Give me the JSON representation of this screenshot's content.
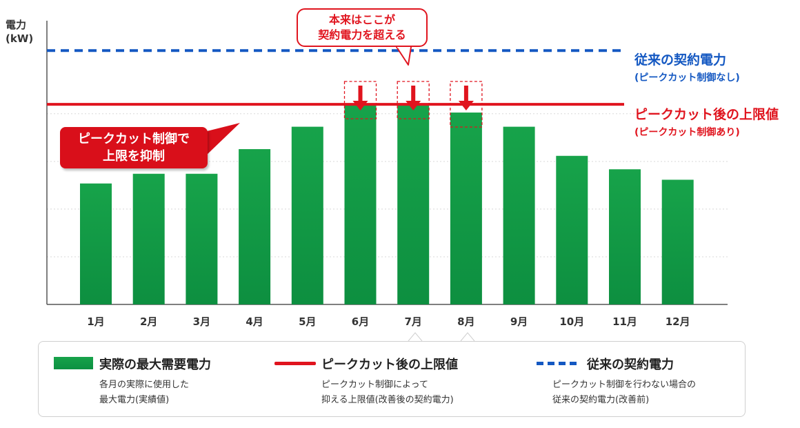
{
  "chart_data": {
    "type": "bar",
    "ylabel": "電力\n(kW)",
    "categories": [
      "1月",
      "2月",
      "3月",
      "4月",
      "5月",
      "6月",
      "7月",
      "8月",
      "9月",
      "10月",
      "11月",
      "12月"
    ],
    "series": [
      {
        "name": "実際の最大需要電力",
        "values": [
          162,
          175,
          175,
          208,
          238,
          268,
          268,
          257,
          238,
          199,
          181,
          167
        ]
      }
    ],
    "ylim": [
      0,
      380
    ],
    "grid": true,
    "reference_lines": [
      {
        "name": "ピークカット後の上限値",
        "value": 268,
        "style": "solid",
        "color": "#e0141e"
      },
      {
        "name": "従来の契約電力",
        "value": 340,
        "style": "dashed",
        "color": "#1458c2"
      }
    ],
    "reduced_months": [
      "6月",
      "7月",
      "8月"
    ]
  },
  "y_axis": {
    "line1": "電力",
    "line2": "(kW)"
  },
  "annotations": {
    "top_callout": {
      "line1": "本来はここが",
      "line2": "契約電力を超える"
    },
    "left_callout": {
      "line1": "ピークカット制御で",
      "line2": "上限を抑制"
    },
    "blue_label": {
      "title": "従来の契約電力",
      "sub": "(ピークカット制御なし)"
    },
    "red_label": {
      "title": "ピークカット後の上限値",
      "sub": "(ピークカット制御あり)"
    }
  },
  "legend": {
    "actual": {
      "title": "実際の最大需要電力",
      "desc1": "各月の実際に使用した",
      "desc2": "最大電力(実績値)"
    },
    "limit": {
      "title": "ピークカット後の上限値",
      "desc1": "ピークカット制御によって",
      "desc2": "抑える上限値(改善後の契約電力)"
    },
    "contract": {
      "title": "従来の契約電力",
      "desc1": "ピークカット制御を行わない場合の",
      "desc2": "従来の契約電力(改善前)"
    }
  },
  "colors": {
    "bar_top": "#17a34a",
    "bar_bottom": "#0d8f40",
    "red": "#e0141e",
    "blue": "#1458c2"
  }
}
